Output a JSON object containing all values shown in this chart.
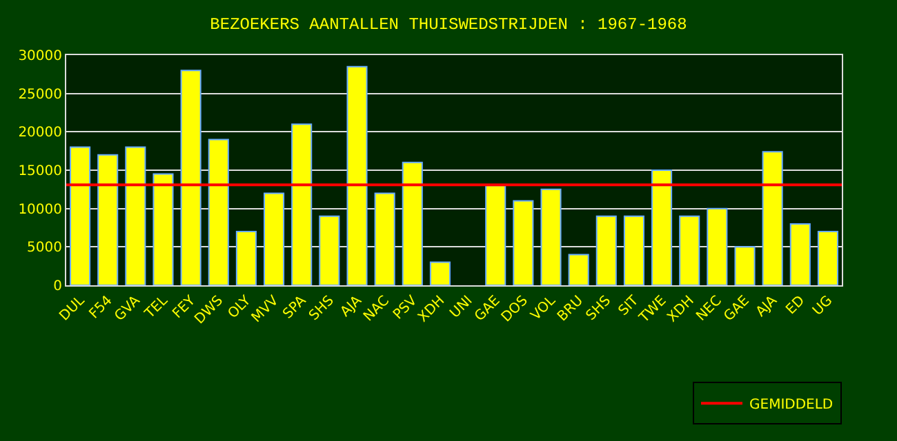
{
  "chart_data": {
    "type": "bar",
    "title": "BEZOEKERS AANTALLEN THUISWEDSTRIJDEN : 1967-1968",
    "categories": [
      "DUL",
      "F54",
      "GVA",
      "TEL",
      "FEY",
      "DWS",
      "OLY",
      "MVV",
      "SPA",
      "SHS",
      "AJA",
      "NAC",
      "PSV",
      "XDH",
      "UNI",
      "GAE",
      "DOS",
      "VOL",
      "BRU",
      "SHS",
      "SIT",
      "TWE",
      "XDH",
      "NEC",
      "GAE",
      "AJA",
      "ED",
      "UG"
    ],
    "values": [
      18000,
      17000,
      18000,
      14500,
      28000,
      19000,
      7000,
      12000,
      21000,
      9000,
      28500,
      12000,
      16000,
      3000,
      null,
      13000,
      11000,
      12500,
      4000,
      9000,
      9000,
      15000,
      9000,
      10000,
      5000,
      17400,
      8000,
      7000
    ],
    "color": "#ffff00",
    "ylim": [
      0,
      30000
    ],
    "yticks": [
      0,
      5000,
      10000,
      15000,
      20000,
      25000,
      30000
    ],
    "grid": "y",
    "ref_lines": [
      {
        "axis": "y",
        "value": 13100,
        "label": "GEMIDDELD",
        "color": "#ff0000"
      }
    ],
    "legend": "bottom right"
  }
}
